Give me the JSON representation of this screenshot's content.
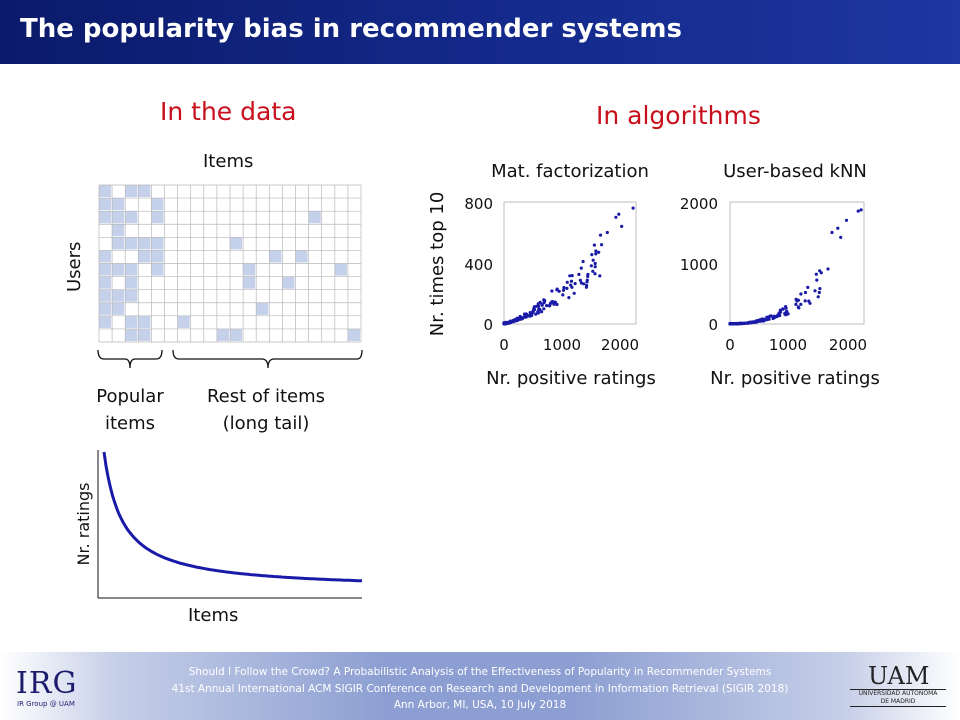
{
  "title": "The popularity bias in recommender systems",
  "data_section": {
    "heading": "In the data",
    "matrix_items_label": "Items",
    "matrix_users_label": "Users",
    "popular_label_line1": "Popular",
    "popular_label_line2": "items",
    "rest_label_line1": "Rest of items",
    "rest_label_line2": "(long tail)",
    "tail_ylabel": "Nr. ratings",
    "tail_xlabel": "Items"
  },
  "algorithms_section": {
    "heading": "In algorithms"
  },
  "chart_data": [
    {
      "type": "scatter",
      "title": "Mat. factorization",
      "xlabel": "Nr. positive ratings",
      "ylabel": "Nr. times top 10",
      "xlim": [
        0,
        2300
      ],
      "ylim": [
        0,
        800
      ],
      "xticks": [
        "0",
        "1000",
        "2000"
      ],
      "yticks": [
        "0",
        "400",
        "800"
      ],
      "color": "#1a1aa8",
      "trend": {
        "y_at_2000": 560,
        "exponent": 1.45
      },
      "points": [
        [
          2250,
          760
        ],
        [
          2000,
          720
        ],
        [
          1950,
          700
        ],
        [
          1800,
          600
        ],
        [
          1700,
          520
        ],
        [
          1650,
          470
        ],
        [
          1600,
          460
        ],
        [
          2050,
          640
        ]
      ]
    },
    {
      "type": "scatter",
      "title": "User-based kNN",
      "xlabel": "Nr. positive ratings",
      "ylabel": "",
      "xlim": [
        0,
        2300
      ],
      "ylim": [
        0,
        2000
      ],
      "xticks": [
        "0",
        "1000",
        "2000"
      ],
      "yticks": [
        "0",
        "1000",
        "2000"
      ],
      "color": "#1a1aa8",
      "trend": {
        "y_at_2000": 1250,
        "exponent": 2.4
      },
      "points": [
        [
          2250,
          1870
        ],
        [
          2200,
          1850
        ],
        [
          2000,
          1700
        ],
        [
          1850,
          1570
        ],
        [
          1750,
          1500
        ],
        [
          1900,
          1420
        ]
      ]
    },
    {
      "type": "line",
      "title": "",
      "xlabel": "Items",
      "ylabel": "Nr. ratings",
      "shape": "long tail (decreasing power law)",
      "color": "#1a1aa8"
    }
  ],
  "footer": {
    "logo_left": "IRG",
    "logo_left_sub": "IR Group @ UAM",
    "line1": "Should I Follow the Crowd? A Probabilistic Analysis of the Effectiveness of Popularity in Recommender Systems",
    "line2": "41st Annual International ACM SIGIR Conference on Research and Development in Information Retrieval (SIGIR 2018)",
    "line3": "Ann Arbor, MI, USA, 10 July 2018",
    "logo_right": "UAM",
    "logo_right_sub1": "UNIVERSIDAD AUTONOMA",
    "logo_right_sub2": "DE MADRID"
  },
  "colors": {
    "title_bar": "#142a8c",
    "heading_red": "#c8101c",
    "matrix_fill": "#c5d1ea",
    "scatter_blue": "#1a1aa8"
  }
}
